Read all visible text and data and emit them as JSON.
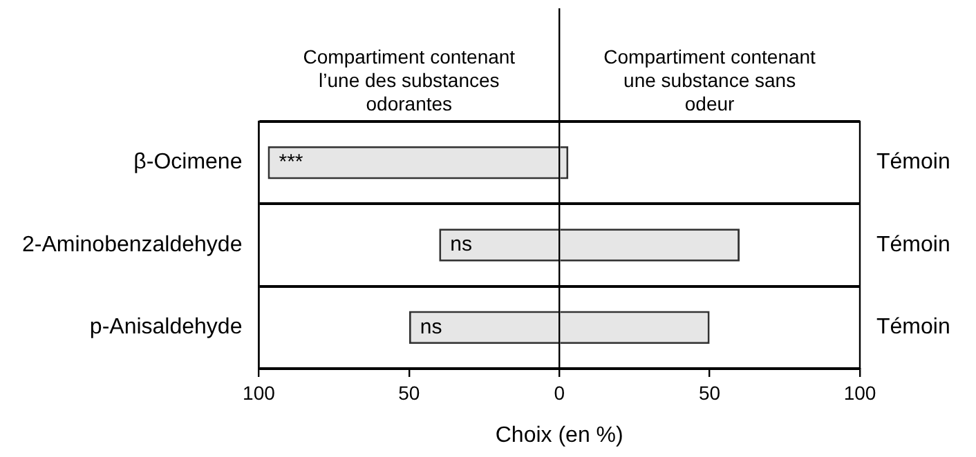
{
  "chart_data": {
    "type": "bar",
    "orientation": "horizontal",
    "stacked": true,
    "xlabel": "Choix (en %)",
    "categories": [
      "β-Ocimene",
      "2-Aminobenzaldehyde",
      "p-Anisaldehyde"
    ],
    "series": [
      {
        "color": "#e6e6e6",
        "values": [
          -97,
          -40,
          -50
        ]
      },
      {
        "color": "#e6e6e6",
        "values": [
          3,
          60,
          50
        ]
      }
    ],
    "xlim": [
      -100,
      100
    ],
    "xticks": [
      {
        "value": -100,
        "label": "100"
      },
      {
        "value": -50,
        "label": "50"
      },
      0,
      50,
      100
    ],
    "ref_lines": [
      {
        "axis": "x",
        "value": 0,
        "color": "#000000"
      }
    ],
    "grid": "y",
    "legend": false,
    "annotations": [
      "Compartiment contenant l’une des substances odorantes",
      "Compartiment contenant une substance sans odeur",
      {
        "text": "***",
        "x": -97,
        "y": "β-Ocimene"
      },
      {
        "text": "ns",
        "x": -40,
        "y": "2-Aminobenzaldehyde"
      },
      {
        "text": "ns",
        "x": -50,
        "y": "p-Anisaldehyde"
      },
      "Témoin",
      "Témoin",
      "Témoin"
    ]
  }
}
